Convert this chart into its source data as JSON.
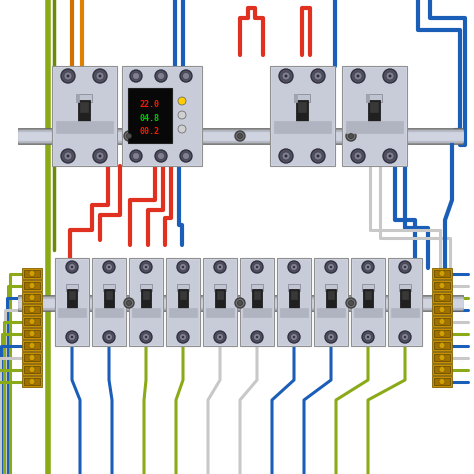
{
  "bg_color": "#ffffff",
  "red": "#e03020",
  "blue": "#1a5eb8",
  "yg": "#8aaa18",
  "green": "#4a9040",
  "white_wire": "#c8c8c8",
  "orange_wire": "#e08000",
  "bc": "#c8ccd8",
  "bc2": "#b0b4c4",
  "rail_dark": "#808080",
  "rail_mid": "#a0a4b0",
  "rail_light": "#c8ccd8",
  "screw_dark": "#404050",
  "screw_mid": "#606070",
  "screw_light": "#808090",
  "sw_dark": "#181818",
  "sw_mid": "#282828",
  "display_bg": "#080808",
  "display_red": "#ff1800",
  "display_green": "#00cc00",
  "tb_color": "#c89000",
  "tb_inner": "#a07000"
}
